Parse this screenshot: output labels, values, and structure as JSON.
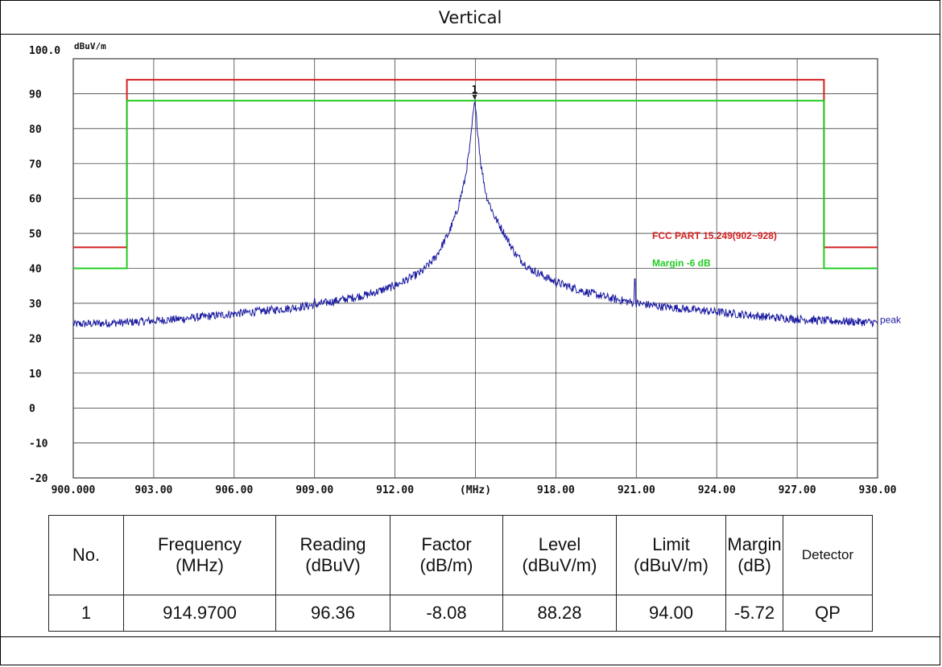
{
  "header": {
    "title": "Vertical"
  },
  "chart_data": {
    "type": "line",
    "y_unit_label": "dBuV/m",
    "x_unit_label": "(MHz)",
    "xlim": [
      900.0,
      930.0
    ],
    "ylim": [
      -20,
      100
    ],
    "y_ticks": [
      "100.0",
      "90",
      "80",
      "70",
      "60",
      "50",
      "40",
      "30",
      "20",
      "10",
      "0",
      "-10",
      "-20"
    ],
    "y_tick_values": [
      100,
      90,
      80,
      70,
      60,
      50,
      40,
      30,
      20,
      10,
      0,
      -10,
      -20
    ],
    "x_ticks": [
      "900.000",
      "903.00",
      "906.00",
      "909.00",
      "912.00",
      "(MHz)",
      "918.00",
      "921.00",
      "924.00",
      "927.00",
      "930.00"
    ],
    "x_tick_values": [
      900,
      903,
      906,
      909,
      912,
      915,
      918,
      921,
      924,
      927,
      930
    ],
    "grid": true,
    "series": [
      {
        "name": "FCC PART 15.249(902~928)",
        "color": "#d42020",
        "x": [
          900,
          902,
          902,
          928,
          928,
          930
        ],
        "y": [
          46,
          46,
          94,
          94,
          46,
          46
        ]
      },
      {
        "name": "Margin -6 dB",
        "color": "#22cc22",
        "x": [
          900,
          902,
          902,
          928,
          928,
          930
        ],
        "y": [
          40,
          40,
          88,
          88,
          40,
          40
        ]
      },
      {
        "name": "peak",
        "color": "#1a1aa0",
        "peak_x": 914.97,
        "peak_y": 88.28,
        "noise_amplitude": 1.2,
        "x": [
          900,
          902,
          904,
          906,
          908,
          909,
          910,
          911,
          912,
          912.5,
          913,
          913.5,
          914,
          914.3,
          914.6,
          914.8,
          914.9,
          914.97,
          915.05,
          915.2,
          915.4,
          915.7,
          916,
          916.5,
          917,
          917.5,
          918,
          919,
          920,
          921,
          922,
          924,
          926,
          928,
          930
        ],
        "y": [
          24,
          24.5,
          25.5,
          27,
          28.5,
          29.5,
          31,
          32.5,
          35,
          37,
          39,
          43,
          50,
          56,
          65,
          75,
          83,
          88.28,
          82,
          70,
          61,
          55,
          51,
          44,
          40,
          38,
          36,
          33.5,
          31.5,
          30,
          29,
          27.5,
          26,
          25,
          24.5
        ]
      }
    ],
    "spurs": [
      {
        "x": 912.0,
        "y": 36
      },
      {
        "x": 920.95,
        "y": 37
      },
      {
        "x": 909.0,
        "y": 31.5
      }
    ],
    "marker": {
      "label": "1",
      "x": 914.97,
      "y": 88.28
    },
    "legend": {
      "limit_label": "FCC PART 15.249(902~928)",
      "margin_label": "Margin -6 dB",
      "trace_label": "peak"
    }
  },
  "results_table": {
    "headers": [
      [
        "No."
      ],
      [
        "Frequency",
        "(MHz)"
      ],
      [
        "Reading",
        "(dBuV)"
      ],
      [
        "Factor",
        "(dB/m)"
      ],
      [
        "Level",
        "(dBuV/m)"
      ],
      [
        "Limit",
        "(dBuV/m)"
      ],
      [
        "Margin",
        "(dB)"
      ],
      [
        "Detector"
      ]
    ],
    "rows": [
      [
        "1",
        "914.9700",
        "96.36",
        "-8.08",
        "88.28",
        "94.00",
        "-5.72",
        "QP"
      ]
    ]
  }
}
